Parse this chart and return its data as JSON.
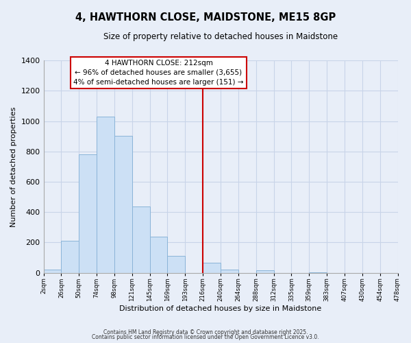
{
  "title": "4, HAWTHORN CLOSE, MAIDSTONE, ME15 8GP",
  "subtitle": "Size of property relative to detached houses in Maidstone",
  "xlabel": "Distribution of detached houses by size in Maidstone",
  "ylabel": "Number of detached properties",
  "bar_edges": [
    2,
    26,
    50,
    74,
    98,
    121,
    145,
    169,
    193,
    216,
    240,
    264,
    288,
    312,
    335,
    359,
    383,
    407,
    430,
    454,
    478
  ],
  "bar_heights": [
    20,
    210,
    780,
    1030,
    905,
    435,
    240,
    110,
    0,
    65,
    20,
    0,
    15,
    0,
    0,
    5,
    0,
    0,
    0,
    0
  ],
  "bar_color": "#cce0f5",
  "bar_edge_color": "#8ab4d8",
  "vline_x": 216,
  "vline_color": "#cc0000",
  "ylim": [
    0,
    1400
  ],
  "yticks": [
    0,
    200,
    400,
    600,
    800,
    1000,
    1200,
    1400
  ],
  "tick_labels": [
    "2sqm",
    "26sqm",
    "50sqm",
    "74sqm",
    "98sqm",
    "121sqm",
    "145sqm",
    "169sqm",
    "193sqm",
    "216sqm",
    "240sqm",
    "264sqm",
    "288sqm",
    "312sqm",
    "335sqm",
    "359sqm",
    "383sqm",
    "407sqm",
    "430sqm",
    "454sqm",
    "478sqm"
  ],
  "annotation_title": "4 HAWTHORN CLOSE: 212sqm",
  "annotation_line1": "← 96% of detached houses are smaller (3,655)",
  "annotation_line2": "4% of semi-detached houses are larger (151) →",
  "annotation_box_color": "#ffffff",
  "annotation_box_edge": "#cc0000",
  "background_color": "#e8eef8",
  "grid_color": "#c8d4e8",
  "footnote1": "Contains HM Land Registry data © Crown copyright and database right 2025.",
  "footnote2": "Contains public sector information licensed under the Open Government Licence v3.0."
}
